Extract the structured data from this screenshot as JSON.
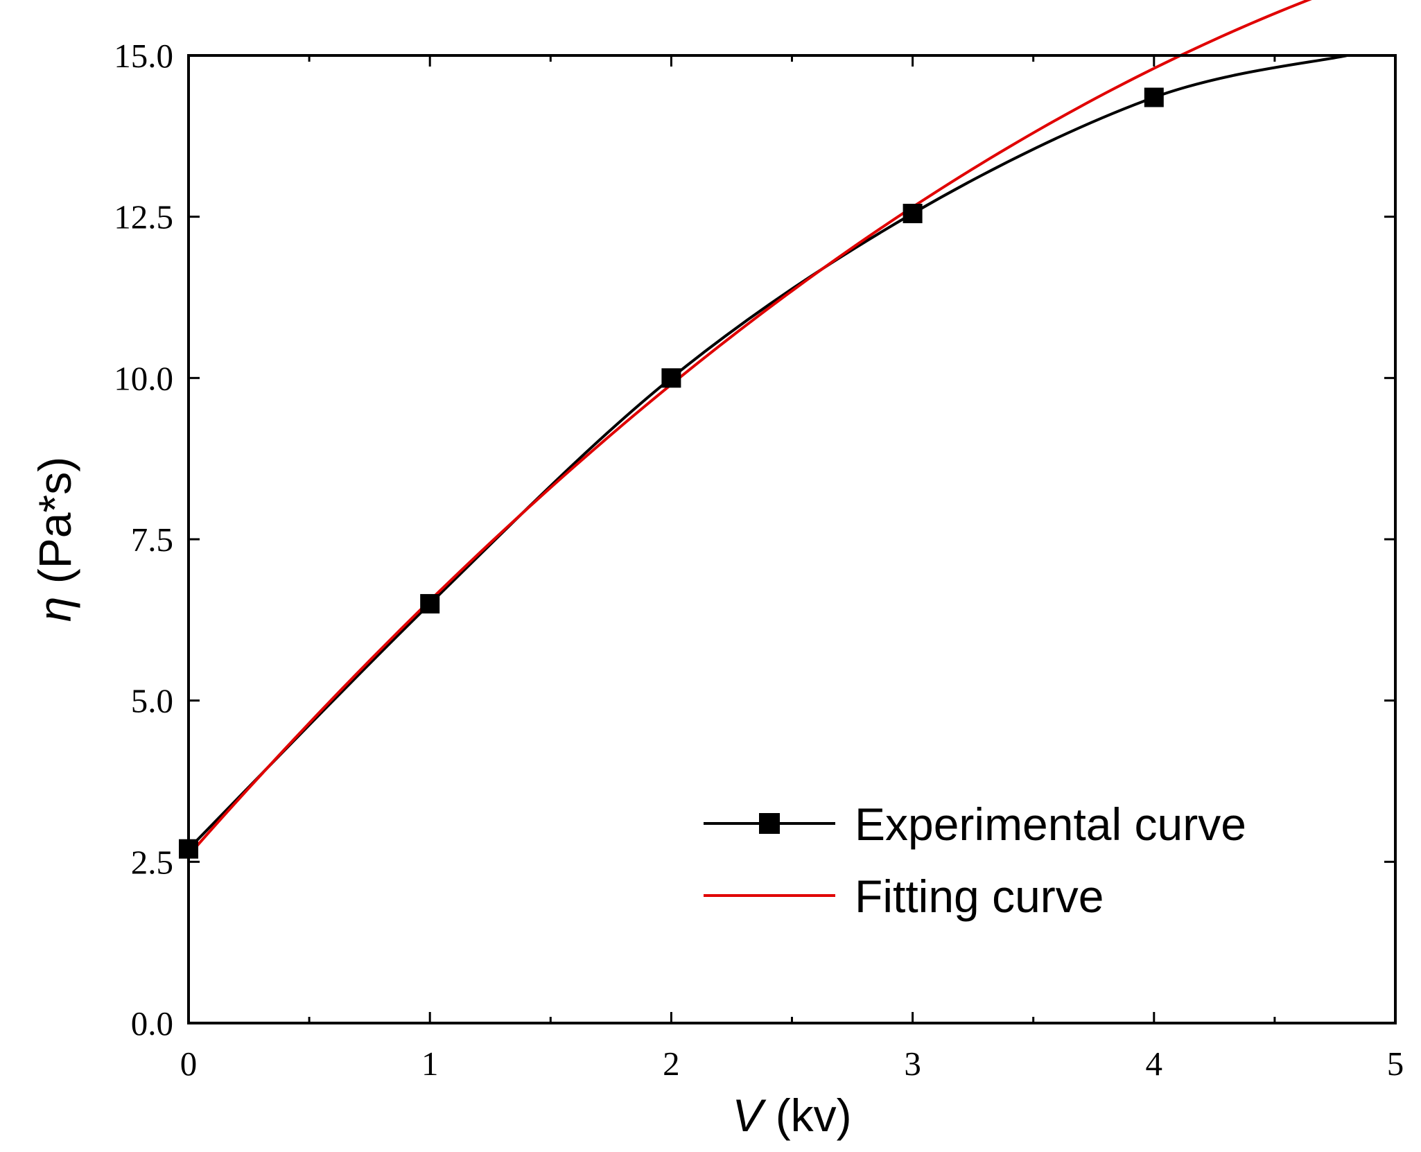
{
  "chart_data": {
    "type": "line",
    "title": "",
    "xlabel_symbol": "V",
    "xlabel_unit": "(kv)",
    "ylabel_symbol": "η",
    "ylabel_unit": "(Pa*s)",
    "xlim": [
      0,
      5
    ],
    "ylim": [
      0,
      15
    ],
    "xticks": [
      0,
      1,
      2,
      3,
      4,
      5
    ],
    "xtick_labels": [
      "0",
      "1",
      "2",
      "3",
      "4",
      "5"
    ],
    "yticks": [
      0,
      2.5,
      5,
      7.5,
      10,
      12.5,
      15
    ],
    "ytick_labels": [
      "0.0",
      "2.5",
      "5.0",
      "7.5",
      "10.0",
      "12.5",
      "15.0"
    ],
    "grid": false,
    "legend_position": "bottom-right",
    "series": [
      {
        "name": "Experimental curve",
        "color": "#000000",
        "marker": "square",
        "x": [
          0,
          1,
          2,
          3,
          4,
          4.8
        ],
        "y": [
          2.7,
          6.5,
          10.0,
          12.55,
          14.35,
          15.0
        ],
        "marker_x": [
          0,
          1,
          2,
          3,
          4
        ],
        "marker_y": [
          2.7,
          6.5,
          10.0,
          12.55,
          14.35
        ]
      },
      {
        "name": "Fitting curve",
        "color": "#e00000",
        "marker": "none",
        "fit_coefficients": [
          2.6,
          4.25,
          -0.3
        ],
        "x_range": [
          0,
          4.8
        ]
      }
    ]
  }
}
